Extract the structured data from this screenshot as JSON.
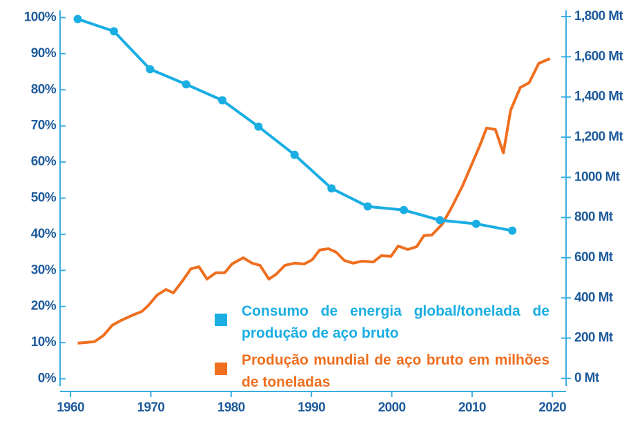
{
  "chart_data": {
    "type": "line",
    "xlim": [
      1958.7,
      2021.7
    ],
    "xticks": [
      1960,
      1970,
      1980,
      1990,
      2000,
      2010,
      2020
    ],
    "ylim": [
      -2,
      102
    ],
    "yticks": [
      {
        "value": 0,
        "label": "0%"
      },
      {
        "value": 10,
        "label": "10%"
      },
      {
        "value": 20,
        "label": "20%"
      },
      {
        "value": 30,
        "label": "30%"
      },
      {
        "value": 40,
        "label": "40%"
      },
      {
        "value": 50,
        "label": "50%"
      },
      {
        "value": 60,
        "label": "60%"
      },
      {
        "value": 70,
        "label": "70%"
      },
      {
        "value": 80,
        "label": "80%"
      },
      {
        "value": 90,
        "label": "90%"
      },
      {
        "value": 100,
        "label": "100%"
      }
    ],
    "y2lim": [
      -38,
      1831
    ],
    "y2ticks": [
      {
        "value": 0,
        "label": "0 Mt"
      },
      {
        "value": 200,
        "label": "200 Mt"
      },
      {
        "value": 400,
        "label": "400 Mt"
      },
      {
        "value": 600,
        "label": "600 Mt"
      },
      {
        "value": 800,
        "label": "800 Mt"
      },
      {
        "value": 1000,
        "label": "1000 Mt"
      },
      {
        "value": 1200,
        "label": "1,200 Mt"
      },
      {
        "value": 1400,
        "label": "1,400 Mt"
      },
      {
        "value": 1600,
        "label": "1,600 Mt"
      },
      {
        "value": 1800,
        "label": "1,800 Mt"
      }
    ],
    "series": [
      {
        "name": "Consumo de energia global/tonelada de produção de aço bruto",
        "color": "#1aaee3",
        "markers": true,
        "x": [
          1960.9,
          1965.4,
          1969.9,
          1974.4,
          1978.9,
          1983.4,
          1987.9,
          1992.5,
          1997,
          2001.5,
          2006,
          2010.5,
          2015
        ],
        "values": [
          99.6,
          96.2,
          85.7,
          81.5,
          77.1,
          69.8,
          62.0,
          52.7,
          47.7,
          46.7,
          43.9,
          42.9,
          41.0
        ]
      },
      {
        "name": "Produção mundial de aço bruto em milhões de toneladas",
        "color": "#ef6f1f",
        "axis": "y2",
        "markers": false,
        "x": [
          1960.9,
          1963.0,
          1964.1,
          1965.2,
          1966.3,
          1967.6,
          1968.9,
          1969.7,
          1970.8,
          1971.9,
          1972.8,
          1973.8,
          1975.0,
          1976.0,
          1977.0,
          1978.1,
          1979.2,
          1980.1,
          1981.5,
          1982.6,
          1983.6,
          1984.7,
          1985.6,
          1986.7,
          1987.9,
          1989.1,
          1990.1,
          1991.0,
          1992.1,
          1993.1,
          1994.1,
          1995.2,
          1996.3,
          1997.7,
          1998.7,
          1999.9,
          2000.8,
          2002.0,
          2003.1,
          2004.0,
          2005.0,
          2006.3,
          2007.5,
          2008.8,
          2009.9,
          2011.0,
          2011.8,
          2012.9,
          2013.9,
          2014.8,
          2016.0,
          2017.1,
          2018.3,
          2019.7
        ],
        "values": [
          175,
          182,
          213,
          264,
          288,
          312,
          333,
          363,
          415,
          442,
          425,
          477,
          545,
          555,
          494,
          525,
          525,
          569,
          600,
          573,
          562,
          494,
          518,
          562,
          573,
          569,
          590,
          638,
          645,
          627,
          586,
          573,
          583,
          579,
          610,
          607,
          658,
          641,
          655,
          710,
          713,
          768,
          854,
          957,
          1059,
          1162,
          1245,
          1238,
          1121,
          1334,
          1447,
          1471,
          1567,
          1591
        ]
      }
    ]
  }
}
